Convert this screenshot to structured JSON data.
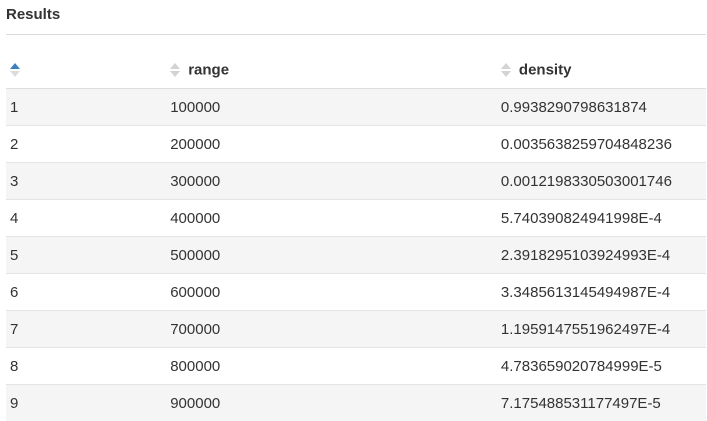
{
  "panel": {
    "title": "Results"
  },
  "table": {
    "columns": [
      {
        "label": "",
        "sort": "ascending"
      },
      {
        "label": "range",
        "sort": "none"
      },
      {
        "label": "density",
        "sort": "none"
      }
    ],
    "rows": [
      {
        "index": "1",
        "range": "100000",
        "density": "0.9938290798631874"
      },
      {
        "index": "2",
        "range": "200000",
        "density": "0.0035638259704848236"
      },
      {
        "index": "3",
        "range": "300000",
        "density": "0.0012198330503001746"
      },
      {
        "index": "4",
        "range": "400000",
        "density": "5.740390824941998E-4"
      },
      {
        "index": "5",
        "range": "500000",
        "density": "2.3918295103924993E-4"
      },
      {
        "index": "6",
        "range": "600000",
        "density": "3.3485613145494987E-4"
      },
      {
        "index": "7",
        "range": "700000",
        "density": "1.1959147551962497E-4"
      },
      {
        "index": "8",
        "range": "800000",
        "density": "4.783659020784999E-5"
      },
      {
        "index": "9",
        "range": "900000",
        "density": "7.175488531177497E-5"
      }
    ]
  },
  "colors": {
    "sort_active": "#3a7fbf",
    "sort_inactive": "#d3d3d3",
    "row_stripe": "#f5f5f5"
  }
}
